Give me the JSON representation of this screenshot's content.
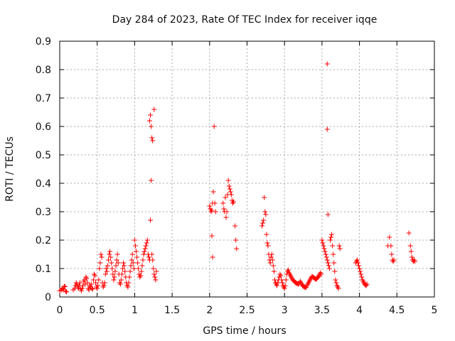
{
  "chart_data": {
    "type": "scatter",
    "title": "Day 284 of 2023, Rate Of TEC Index for receiver iqqe",
    "xlabel": "GPS time / hours",
    "ylabel": "ROTI / TECUs",
    "xlim": [
      0,
      5
    ],
    "ylim": [
      0,
      0.9
    ],
    "xticks": [
      "0",
      "0.5",
      "1",
      "1.5",
      "2",
      "2.5",
      "3",
      "3.5",
      "4",
      "4.5",
      "5"
    ],
    "yticks": [
      "0",
      "0.1",
      "0.2",
      "0.3",
      "0.4",
      "0.5",
      "0.6",
      "0.7",
      "0.8",
      "0.9"
    ],
    "grid": true,
    "marker": "+",
    "color": "#ff0000",
    "series": [
      {
        "name": "ROTI",
        "points": [
          [
            0.0,
            0.022
          ],
          [
            0.02,
            0.024
          ],
          [
            0.03,
            0.028
          ],
          [
            0.04,
            0.03
          ],
          [
            0.05,
            0.025
          ],
          [
            0.06,
            0.038
          ],
          [
            0.07,
            0.036
          ],
          [
            0.08,
            0.02
          ],
          [
            0.09,
            0.018
          ],
          [
            0.18,
            0.025
          ],
          [
            0.2,
            0.03
          ],
          [
            0.21,
            0.04
          ],
          [
            0.22,
            0.05
          ],
          [
            0.23,
            0.045
          ],
          [
            0.24,
            0.035
          ],
          [
            0.25,
            0.03
          ],
          [
            0.26,
            0.04
          ],
          [
            0.27,
            0.05
          ],
          [
            0.28,
            0.028
          ],
          [
            0.29,
            0.022
          ],
          [
            0.3,
            0.03
          ],
          [
            0.31,
            0.04
          ],
          [
            0.32,
            0.055
          ],
          [
            0.33,
            0.06
          ],
          [
            0.34,
            0.045
          ],
          [
            0.35,
            0.07
          ],
          [
            0.36,
            0.065
          ],
          [
            0.37,
            0.05
          ],
          [
            0.38,
            0.03
          ],
          [
            0.39,
            0.025
          ],
          [
            0.4,
            0.04
          ],
          [
            0.41,
            0.035
          ],
          [
            0.42,
            0.045
          ],
          [
            0.43,
            0.03
          ],
          [
            0.44,
            0.028
          ],
          [
            0.45,
            0.06
          ],
          [
            0.46,
            0.08
          ],
          [
            0.47,
            0.075
          ],
          [
            0.48,
            0.05
          ],
          [
            0.49,
            0.035
          ],
          [
            0.5,
            0.03
          ],
          [
            0.51,
            0.04
          ],
          [
            0.52,
            0.06
          ],
          [
            0.53,
            0.1
          ],
          [
            0.54,
            0.12
          ],
          [
            0.55,
            0.15
          ],
          [
            0.56,
            0.14
          ],
          [
            0.57,
            0.05
          ],
          [
            0.58,
            0.035
          ],
          [
            0.59,
            0.04
          ],
          [
            0.6,
            0.05
          ],
          [
            0.61,
            0.08
          ],
          [
            0.62,
            0.1
          ],
          [
            0.63,
            0.09
          ],
          [
            0.64,
            0.11
          ],
          [
            0.65,
            0.13
          ],
          [
            0.66,
            0.15
          ],
          [
            0.67,
            0.16
          ],
          [
            0.68,
            0.14
          ],
          [
            0.69,
            0.12
          ],
          [
            0.7,
            0.1
          ],
          [
            0.71,
            0.08
          ],
          [
            0.72,
            0.06
          ],
          [
            0.73,
            0.07
          ],
          [
            0.74,
            0.09
          ],
          [
            0.75,
            0.11
          ],
          [
            0.76,
            0.13
          ],
          [
            0.77,
            0.15
          ],
          [
            0.78,
            0.12
          ],
          [
            0.79,
            0.08
          ],
          [
            0.8,
            0.05
          ],
          [
            0.81,
            0.045
          ],
          [
            0.82,
            0.06
          ],
          [
            0.83,
            0.08
          ],
          [
            0.84,
            0.1
          ],
          [
            0.85,
            0.12
          ],
          [
            0.86,
            0.11
          ],
          [
            0.87,
            0.09
          ],
          [
            0.88,
            0.07
          ],
          [
            0.89,
            0.05
          ],
          [
            0.9,
            0.04
          ],
          [
            0.91,
            0.035
          ],
          [
            0.92,
            0.05
          ],
          [
            0.93,
            0.07
          ],
          [
            0.94,
            0.09
          ],
          [
            0.95,
            0.11
          ],
          [
            0.96,
            0.13
          ],
          [
            0.97,
            0.15
          ],
          [
            0.98,
            0.12
          ],
          [
            0.99,
            0.1
          ],
          [
            1.0,
            0.2
          ],
          [
            1.01,
            0.18
          ],
          [
            1.02,
            0.16
          ],
          [
            1.03,
            0.14
          ],
          [
            1.04,
            0.12
          ],
          [
            1.05,
            0.1
          ],
          [
            1.06,
            0.08
          ],
          [
            1.07,
            0.07
          ],
          [
            1.08,
            0.075
          ],
          [
            1.09,
            0.09
          ],
          [
            1.1,
            0.11
          ],
          [
            1.11,
            0.13
          ],
          [
            1.12,
            0.15
          ],
          [
            1.13,
            0.16
          ],
          [
            1.14,
            0.17
          ],
          [
            1.15,
            0.18
          ],
          [
            1.16,
            0.19
          ],
          [
            1.17,
            0.2
          ],
          [
            1.18,
            0.15
          ],
          [
            1.19,
            0.14
          ],
          [
            1.2,
            0.13
          ],
          [
            1.21,
            0.27
          ],
          [
            1.22,
            0.41
          ],
          [
            1.23,
            0.15
          ],
          [
            1.24,
            0.13
          ],
          [
            1.25,
            0.1
          ],
          [
            1.26,
            0.08
          ],
          [
            1.27,
            0.07
          ],
          [
            1.28,
            0.06
          ],
          [
            1.29,
            0.09
          ],
          [
            1.2,
            0.62
          ],
          [
            1.21,
            0.64
          ],
          [
            1.22,
            0.6
          ],
          [
            1.23,
            0.56
          ],
          [
            1.24,
            0.55
          ],
          [
            1.26,
            0.66
          ],
          [
            2.0,
            0.32
          ],
          [
            2.01,
            0.31
          ],
          [
            2.02,
            0.3
          ],
          [
            2.03,
            0.305
          ],
          [
            2.04,
            0.33
          ],
          [
            2.05,
            0.37
          ],
          [
            2.06,
            0.6
          ],
          [
            2.07,
            0.33
          ],
          [
            2.08,
            0.3
          ],
          [
            2.03,
            0.215
          ],
          [
            2.04,
            0.14
          ],
          [
            2.18,
            0.33
          ],
          [
            2.19,
            0.31
          ],
          [
            2.2,
            0.3
          ],
          [
            2.21,
            0.35
          ],
          [
            2.22,
            0.28
          ],
          [
            2.23,
            0.3
          ],
          [
            2.24,
            0.36
          ],
          [
            2.25,
            0.41
          ],
          [
            2.26,
            0.39
          ],
          [
            2.27,
            0.38
          ],
          [
            2.28,
            0.37
          ],
          [
            2.29,
            0.36
          ],
          [
            2.3,
            0.34
          ],
          [
            2.31,
            0.33
          ],
          [
            2.32,
            0.335
          ],
          [
            2.34,
            0.25
          ],
          [
            2.35,
            0.2
          ],
          [
            2.36,
            0.17
          ],
          [
            2.7,
            0.25
          ],
          [
            2.71,
            0.26
          ],
          [
            2.72,
            0.27
          ],
          [
            2.73,
            0.35
          ],
          [
            2.74,
            0.3
          ],
          [
            2.75,
            0.29
          ],
          [
            2.76,
            0.22
          ],
          [
            2.77,
            0.19
          ],
          [
            2.78,
            0.18
          ],
          [
            2.79,
            0.15
          ],
          [
            2.8,
            0.13
          ],
          [
            2.81,
            0.12
          ],
          [
            2.82,
            0.14
          ],
          [
            2.83,
            0.15
          ],
          [
            2.84,
            0.13
          ],
          [
            2.85,
            0.11
          ],
          [
            2.86,
            0.09
          ],
          [
            2.87,
            0.06
          ],
          [
            2.88,
            0.05
          ],
          [
            2.89,
            0.045
          ],
          [
            2.9,
            0.04
          ],
          [
            2.91,
            0.05
          ],
          [
            2.92,
            0.06
          ],
          [
            2.93,
            0.07
          ],
          [
            2.94,
            0.08
          ],
          [
            2.95,
            0.075
          ],
          [
            2.96,
            0.06
          ],
          [
            2.97,
            0.05
          ],
          [
            2.98,
            0.04
          ],
          [
            2.99,
            0.035
          ],
          [
            3.0,
            0.03
          ],
          [
            3.01,
            0.04
          ],
          [
            3.02,
            0.06
          ],
          [
            3.03,
            0.08
          ],
          [
            3.04,
            0.09
          ],
          [
            3.05,
            0.095
          ],
          [
            3.06,
            0.085
          ],
          [
            3.07,
            0.08
          ],
          [
            3.08,
            0.075
          ],
          [
            3.09,
            0.07
          ],
          [
            3.1,
            0.065
          ],
          [
            3.11,
            0.06
          ],
          [
            3.12,
            0.058
          ],
          [
            3.13,
            0.055
          ],
          [
            3.14,
            0.052
          ],
          [
            3.15,
            0.05
          ],
          [
            3.16,
            0.048
          ],
          [
            3.17,
            0.047
          ],
          [
            3.18,
            0.046
          ],
          [
            3.19,
            0.045
          ],
          [
            3.2,
            0.05
          ],
          [
            3.21,
            0.055
          ],
          [
            3.22,
            0.05
          ],
          [
            3.23,
            0.045
          ],
          [
            3.24,
            0.04
          ],
          [
            3.25,
            0.038
          ],
          [
            3.26,
            0.036
          ],
          [
            3.27,
            0.035
          ],
          [
            3.28,
            0.034
          ],
          [
            3.29,
            0.033
          ],
          [
            3.3,
            0.04
          ],
          [
            3.31,
            0.045
          ],
          [
            3.32,
            0.05
          ],
          [
            3.33,
            0.055
          ],
          [
            3.34,
            0.06
          ],
          [
            3.35,
            0.065
          ],
          [
            3.36,
            0.07
          ],
          [
            3.37,
            0.072
          ],
          [
            3.38,
            0.07
          ],
          [
            3.39,
            0.068
          ],
          [
            3.4,
            0.066
          ],
          [
            3.41,
            0.064
          ],
          [
            3.42,
            0.062
          ],
          [
            3.43,
            0.065
          ],
          [
            3.44,
            0.068
          ],
          [
            3.45,
            0.07
          ],
          [
            3.46,
            0.075
          ],
          [
            3.47,
            0.08
          ],
          [
            3.48,
            0.085
          ],
          [
            3.49,
            0.08
          ],
          [
            3.5,
            0.2
          ],
          [
            3.51,
            0.19
          ],
          [
            3.52,
            0.18
          ],
          [
            3.53,
            0.17
          ],
          [
            3.54,
            0.16
          ],
          [
            3.55,
            0.15
          ],
          [
            3.56,
            0.14
          ],
          [
            3.57,
            0.13
          ],
          [
            3.58,
            0.12
          ],
          [
            3.59,
            0.11
          ],
          [
            3.6,
            0.1
          ],
          [
            3.61,
            0.2
          ],
          [
            3.62,
            0.21
          ],
          [
            3.63,
            0.22
          ],
          [
            3.64,
            0.18
          ],
          [
            3.65,
            0.15
          ],
          [
            3.66,
            0.12
          ],
          [
            3.67,
            0.09
          ],
          [
            3.68,
            0.06
          ],
          [
            3.69,
            0.05
          ],
          [
            3.7,
            0.04
          ],
          [
            3.71,
            0.035
          ],
          [
            3.72,
            0.03
          ],
          [
            3.73,
            0.18
          ],
          [
            3.74,
            0.17
          ],
          [
            3.57,
            0.82
          ],
          [
            3.57,
            0.59
          ],
          [
            3.58,
            0.29
          ],
          [
            3.95,
            0.12
          ],
          [
            3.96,
            0.125
          ],
          [
            3.97,
            0.13
          ],
          [
            3.98,
            0.12
          ],
          [
            3.99,
            0.11
          ],
          [
            4.0,
            0.1
          ],
          [
            4.01,
            0.09
          ],
          [
            4.02,
            0.08
          ],
          [
            4.03,
            0.07
          ],
          [
            4.04,
            0.06
          ],
          [
            4.05,
            0.055
          ],
          [
            4.06,
            0.05
          ],
          [
            4.07,
            0.045
          ],
          [
            4.08,
            0.042
          ],
          [
            4.09,
            0.04
          ],
          [
            4.1,
            0.045
          ],
          [
            4.38,
            0.18
          ],
          [
            4.4,
            0.21
          ],
          [
            4.42,
            0.18
          ],
          [
            4.43,
            0.15
          ],
          [
            4.44,
            0.13
          ],
          [
            4.45,
            0.125
          ],
          [
            4.46,
            0.13
          ],
          [
            4.66,
            0.225
          ],
          [
            4.68,
            0.18
          ],
          [
            4.69,
            0.16
          ],
          [
            4.7,
            0.14
          ],
          [
            4.71,
            0.13
          ],
          [
            4.72,
            0.125
          ],
          [
            4.73,
            0.13
          ],
          [
            4.74,
            0.125
          ]
        ]
      }
    ]
  }
}
